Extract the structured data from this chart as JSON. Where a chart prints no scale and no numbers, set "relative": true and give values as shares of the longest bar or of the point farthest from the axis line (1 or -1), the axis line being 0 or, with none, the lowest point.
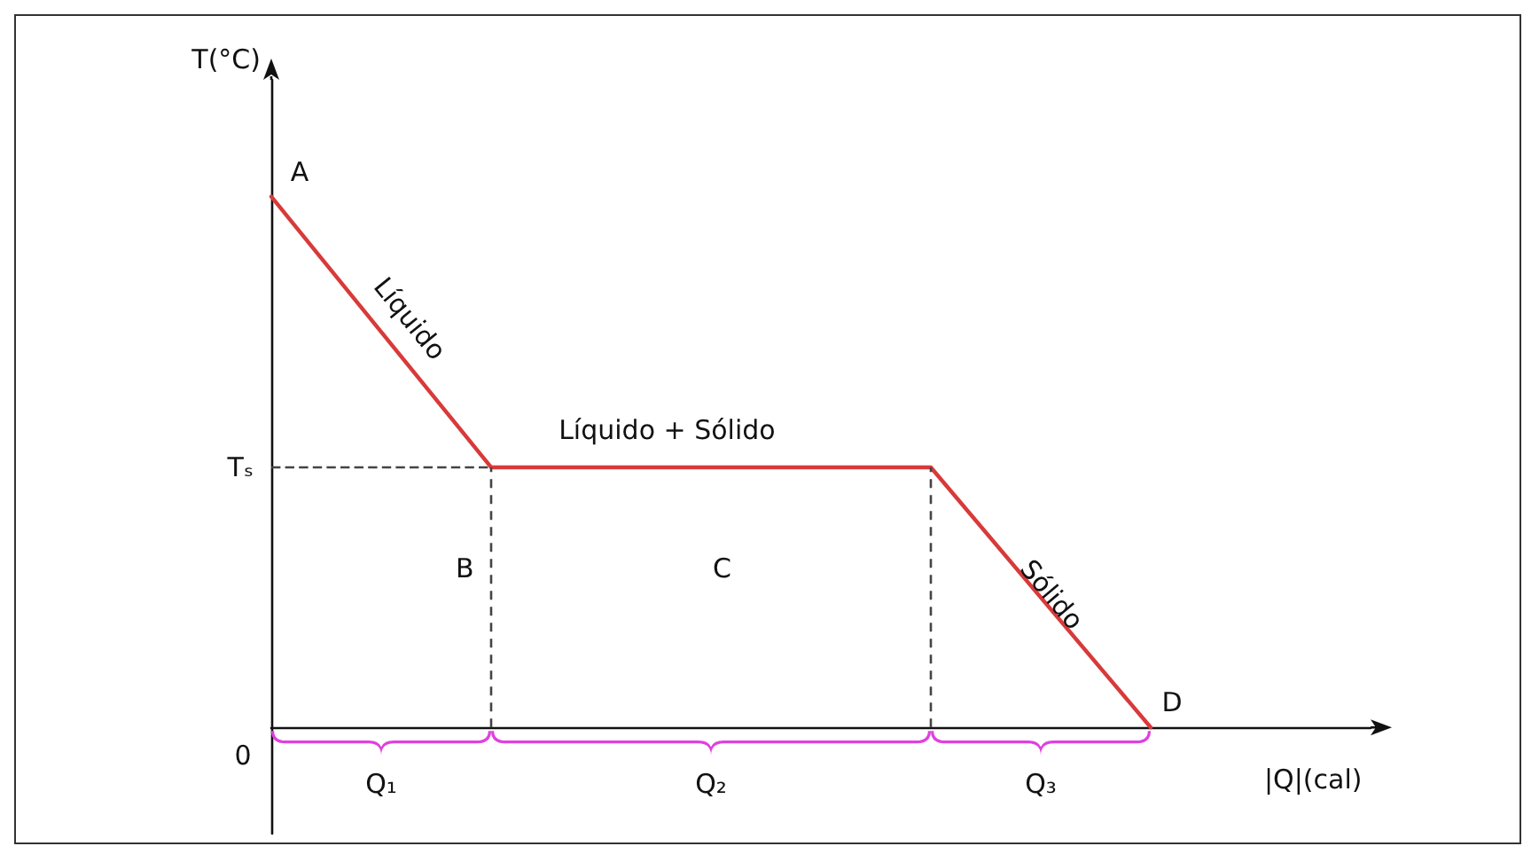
{
  "chart_data": {
    "type": "line",
    "relative": true,
    "xlabel": "|Q|(cal)",
    "ylabel": "T(°C)",
    "categories": [
      null,
      null,
      null,
      null,
      null,
      null
    ],
    "series": [
      {
        "color": "#d83a3a",
        "values": [
          1,
          0.49,
          0.49,
          0.49,
          0,
          null
        ]
      }
    ],
    "marker": "none",
    "line_style": "solid",
    "grid": false,
    "ref_lines": [
      {
        "axis": "y",
        "value": 0.49,
        "label": "Tₛ",
        "color": "#444444",
        "line_style": "dashed"
      }
    ],
    "annotations": [
      "A",
      "Líquido",
      "B",
      "Líquido + Sólido",
      "C",
      "Sólido",
      "D",
      "0",
      "Q₁",
      "Q₂",
      "Q₃"
    ]
  }
}
